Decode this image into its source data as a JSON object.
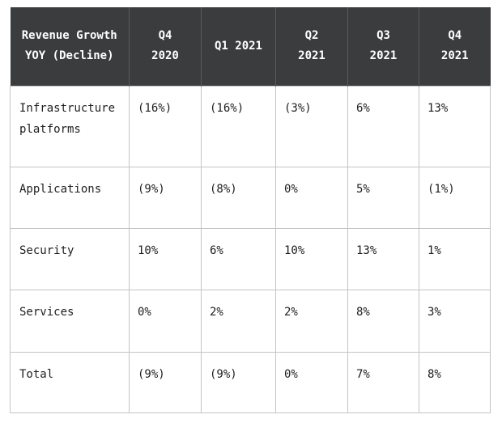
{
  "table": {
    "header": {
      "metric_line1": "Revenue Growth",
      "metric_line2": "YOY (Decline)",
      "periods": [
        {
          "line1": "Q4",
          "line2": "2020"
        },
        {
          "line1": "Q1 2021",
          "line2": ""
        },
        {
          "line1": "Q2",
          "line2": "2021"
        },
        {
          "line1": "Q3",
          "line2": "2021"
        },
        {
          "line1": "Q4",
          "line2": "2021"
        }
      ]
    },
    "rows": [
      {
        "label_line1": "Infrastructure",
        "label_line2": "platforms",
        "values": [
          "(16%)",
          "(16%)",
          "(3%)",
          "6%",
          "13%"
        ]
      },
      {
        "label_line1": "Applications",
        "label_line2": "",
        "values": [
          "(9%)",
          "(8%)",
          "0%",
          "5%",
          "(1%)"
        ]
      },
      {
        "label_line1": "Security",
        "label_line2": "",
        "values": [
          "10%",
          "6%",
          "10%",
          "13%",
          "1%"
        ]
      },
      {
        "label_line1": "Services",
        "label_line2": "",
        "values": [
          "0%",
          "2%",
          "2%",
          "8%",
          "3%"
        ]
      },
      {
        "label_line1": "Total",
        "label_line2": "",
        "values": [
          "(9%)",
          "(9%)",
          "0%",
          "7%",
          "8%"
        ]
      }
    ]
  },
  "colors": {
    "header_bg": "#3b3c3e",
    "header_text": "#ffffff",
    "grid": "#c4c4c4",
    "cell_text": "#1e1e1e"
  }
}
